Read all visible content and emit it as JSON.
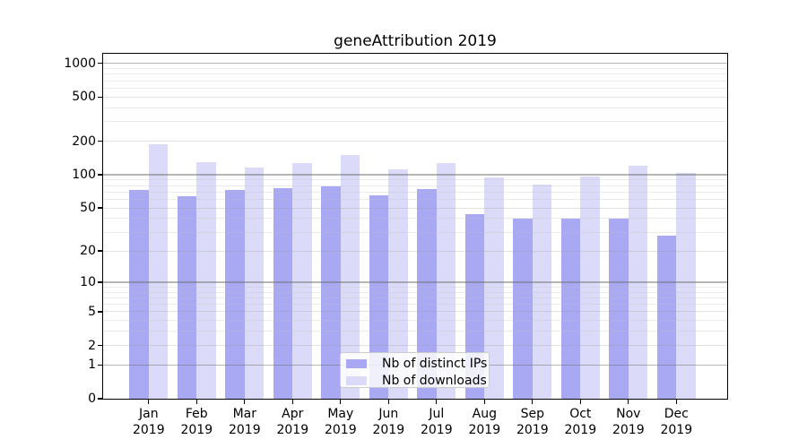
{
  "figure": {
    "title": "geneAttribution 2019"
  },
  "legend": {
    "items": [
      {
        "label": "Nb of distinct IPs",
        "color": "#a9a9f3"
      },
      {
        "label": "Nb of downloads",
        "color": "#dbdbf9"
      }
    ]
  },
  "axes": {
    "y_tick_labels": [
      "0",
      "1",
      "2",
      "5",
      "10",
      "20",
      "50",
      "100",
      "200",
      "500",
      "1000"
    ],
    "x_months": [
      "Jan",
      "Feb",
      "Mar",
      "Apr",
      "May",
      "Jun",
      "Jul",
      "Aug",
      "Sep",
      "Oct",
      "Nov",
      "Dec"
    ],
    "x_year": "2019"
  },
  "colors": {
    "grid_decade": "rgba(110,110,110,0.5)",
    "grid_labeled": "rgba(150,150,150,0.28)",
    "grid_minor": "rgba(190,190,190,0.3)",
    "spine": "#000000",
    "background": "#ffffff"
  },
  "chart_data": {
    "type": "bar",
    "title": "geneAttribution 2019",
    "categories": [
      "Jan 2019",
      "Feb 2019",
      "Mar 2019",
      "Apr 2019",
      "May 2019",
      "Jun 2019",
      "Jul 2019",
      "Aug 2019",
      "Sep 2019",
      "Oct 2019",
      "Nov 2019",
      "Dec 2019"
    ],
    "series": [
      {
        "name": "Nb of distinct IPs",
        "color": "#a9a9f3",
        "values": [
          73,
          64,
          73,
          76,
          79,
          65,
          74,
          44,
          40,
          40,
          40,
          28
        ]
      },
      {
        "name": "Nb of downloads",
        "color": "#dbdbf9",
        "values": [
          190,
          131,
          117,
          128,
          152,
          113,
          128,
          94,
          82,
          97,
          120,
          104
        ]
      }
    ],
    "xlabel": "",
    "ylabel": "",
    "y_scale": "log10(value+1)",
    "y_ticks": [
      0,
      1,
      2,
      5,
      10,
      20,
      50,
      100,
      200,
      500,
      1000
    ],
    "ylim": [
      0,
      1220
    ],
    "grid": "on",
    "grid_over_bars": true,
    "legend_position": "lower center"
  }
}
